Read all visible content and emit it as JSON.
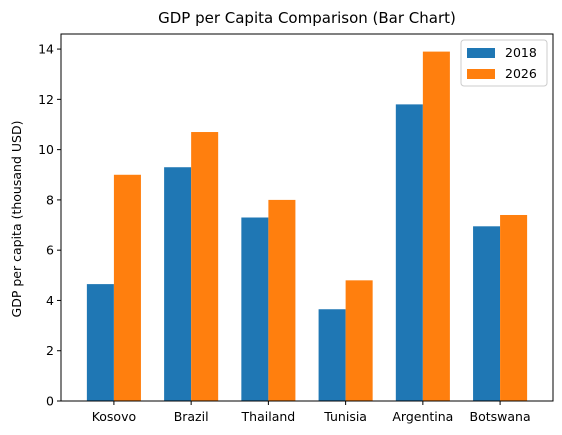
{
  "chart_data": {
    "type": "bar",
    "title": "GDP per Capita Comparison (Bar Chart)",
    "xlabel": "",
    "ylabel": "GDP per capita (thousand USD)",
    "categories": [
      "Kosovo",
      "Brazil",
      "Thailand",
      "Tunisia",
      "Argentina",
      "Botswana"
    ],
    "series": [
      {
        "name": "2018",
        "color": "#1f77b4",
        "values": [
          4.65,
          9.3,
          7.3,
          3.65,
          11.8,
          6.95
        ]
      },
      {
        "name": "2026",
        "color": "#ff7f0e",
        "values": [
          9.0,
          10.7,
          8.0,
          4.8,
          13.9,
          7.4
        ]
      }
    ],
    "ylim": [
      0,
      14.6
    ],
    "yticks": [
      0,
      2,
      4,
      6,
      8,
      10,
      12,
      14
    ],
    "grid": false,
    "legend_position": "top-right"
  }
}
